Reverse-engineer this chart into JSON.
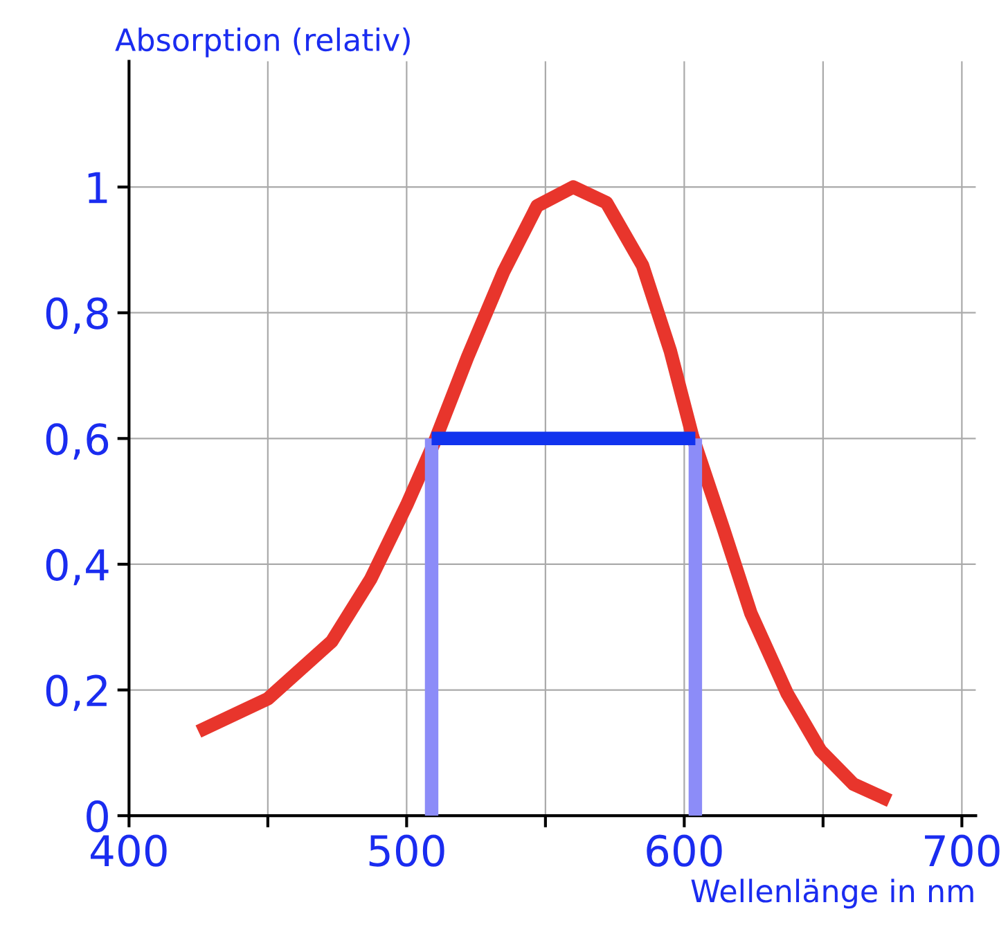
{
  "chart_data": {
    "type": "line",
    "title": "Absorption (relativ)",
    "xlabel": "Wellenlänge in nm",
    "xlim": [
      400,
      705
    ],
    "ylim": [
      0,
      1.2
    ],
    "xticks": [
      400,
      {
        "value": 450,
        "label": null
      },
      500,
      {
        "value": 550,
        "label": null
      },
      600,
      {
        "value": 650,
        "label": null
      },
      700
    ],
    "yticks": [
      0,
      {
        "value": 0.2,
        "label": "0,2"
      },
      {
        "value": 0.4,
        "label": "0,4"
      },
      {
        "value": 0.6,
        "label": "0,6"
      },
      {
        "value": 0.8,
        "label": "0,8"
      },
      1
    ],
    "grid": true,
    "marker": "none",
    "line_style": "solid",
    "series": [
      {
        "color": "#e8352c",
        "x": [
          425,
          450,
          473,
          487,
          500,
          510,
          522,
          535,
          547,
          560,
          572,
          585,
          595,
          603,
          614,
          624,
          637,
          649,
          661,
          674
        ],
        "values": [
          0.134,
          0.186,
          0.277,
          0.376,
          0.494,
          0.594,
          0.73,
          0.866,
          0.97,
          1.0,
          0.975,
          0.875,
          0.739,
          0.603,
          0.458,
          0.322,
          0.195,
          0.104,
          0.05,
          0.024
        ]
      },
      {
        "color": "#8c8cf8",
        "x": [
          509,
          509
        ],
        "values": [
          0,
          0.6
        ]
      },
      {
        "color": "#8c8cf8",
        "x": [
          604,
          604
        ],
        "values": [
          0,
          0.6
        ]
      },
      {
        "color": "#1133ee",
        "x": [
          509,
          604
        ],
        "values": [
          0.6,
          0.6
        ]
      }
    ]
  }
}
